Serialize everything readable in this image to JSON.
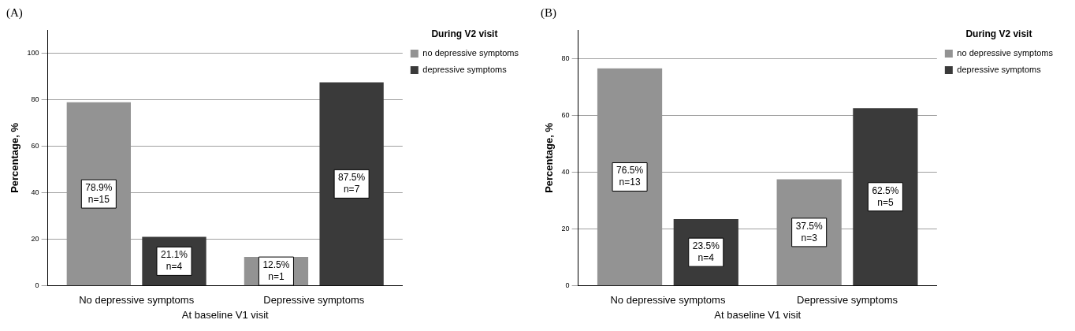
{
  "chart_data": [
    {
      "type": "bar",
      "title": "(A)",
      "xlabel": "At baseline V1 visit",
      "ylabel": "Percentage, %",
      "legend_title": "During V2 visit",
      "categories": [
        "No depressive symptoms",
        "Depressive symptoms"
      ],
      "series": [
        {
          "name": "no depressive symptoms",
          "color": "#939393",
          "values": [
            78.9,
            12.5
          ],
          "value_labels": [
            "78.9%\nn=15",
            "12.5%\nn=1"
          ]
        },
        {
          "name": "depressive symptoms",
          "color": "#3a3a3a",
          "values": [
            21.1,
            87.5
          ],
          "value_labels": [
            "21.1%\nn=4",
            "87.5%\nn=7"
          ]
        }
      ],
      "ylim": [
        0,
        110
      ],
      "yticks": [
        0,
        20,
        40,
        60,
        80,
        100
      ],
      "grid": "y",
      "legend": "top right"
    },
    {
      "type": "bar",
      "title": "(B)",
      "xlabel": "At baseline V1 visit",
      "ylabel": "Percentage, %",
      "legend_title": "During V2 visit",
      "categories": [
        "No depressive symptoms",
        "Depressive symptoms"
      ],
      "series": [
        {
          "name": "no depressive symptoms",
          "color": "#939393",
          "values": [
            76.5,
            37.5
          ],
          "value_labels": [
            "76.5%\nn=13",
            "37.5%\nn=3"
          ]
        },
        {
          "name": "depressive symptoms",
          "color": "#3a3a3a",
          "values": [
            23.5,
            62.5
          ],
          "value_labels": [
            "23.5%\nn=4",
            "62.5%\nn=5"
          ]
        }
      ],
      "ylim": [
        0,
        90
      ],
      "yticks": [
        0,
        20,
        40,
        60,
        80
      ],
      "grid": "y",
      "legend": "top right"
    }
  ]
}
